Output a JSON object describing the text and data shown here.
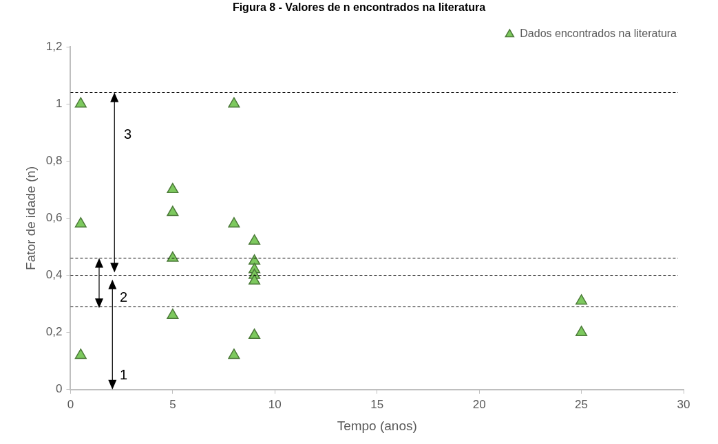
{
  "chart_data": {
    "type": "scatter",
    "title": "Figura 8 - Valores de n encontrados na literatura",
    "xlabel": "Tempo (anos)",
    "ylabel": "Fator de idade (n)",
    "series": [
      {
        "name": "Dados encontrados na literatura",
        "color": "#7dc95e",
        "x": [
          0.5,
          0.5,
          0.5,
          5,
          5,
          5,
          5,
          8,
          8,
          8,
          9,
          9,
          9,
          9,
          9,
          9,
          25,
          25
        ],
        "values": [
          1.0,
          0.58,
          0.12,
          0.7,
          0.62,
          0.46,
          0.26,
          1.0,
          0.58,
          0.12,
          0.52,
          0.45,
          0.42,
          0.4,
          0.38,
          0.19,
          0.31,
          0.2
        ]
      }
    ],
    "marker": "triangle",
    "legend": "top right",
    "grid": false,
    "xlim": [
      0,
      30
    ],
    "xticks": [
      0,
      5,
      10,
      15,
      20,
      25,
      30
    ],
    "ylim": [
      0,
      1.2
    ],
    "yticks": [
      0,
      {
        "value": 0.2,
        "label": "0,2"
      },
      {
        "value": 0.4,
        "label": "0,4"
      },
      {
        "value": 0.6,
        "label": "0,6"
      },
      {
        "value": 0.8,
        "label": "0,8"
      },
      1,
      {
        "value": 1.2,
        "label": "1,2"
      }
    ],
    "ref_lines": [
      {
        "axis": "y",
        "value": 1.04,
        "color": "#000000",
        "line_style": "dashed"
      },
      {
        "axis": "y",
        "value": 0.46,
        "color": "#000000",
        "line_style": "dashed"
      },
      {
        "axis": "y",
        "value": 0.4,
        "color": "#000000",
        "line_style": "dashed"
      },
      {
        "axis": "y",
        "value": 0.29,
        "color": "#000000",
        "line_style": "dashed"
      }
    ],
    "annotations": [
      "3",
      "2",
      "1"
    ]
  }
}
